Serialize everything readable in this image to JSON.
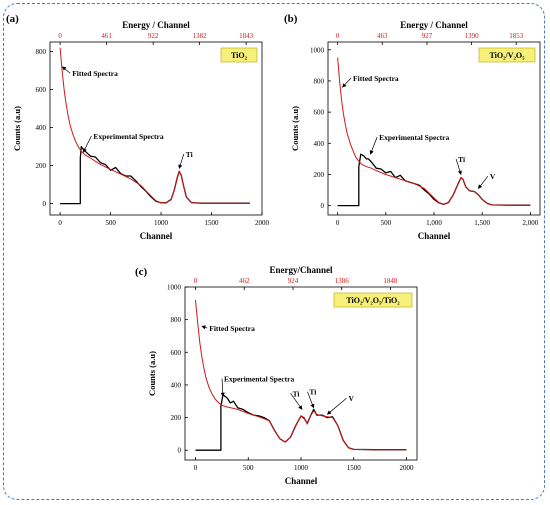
{
  "chart_data": [
    {
      "type": "line",
      "panel_label": "(a)",
      "sample_label": "TiO₂",
      "xlabel": "Channel",
      "ylabel": "Counts (a.u)",
      "top_xlabel": "Energy / Channel",
      "xlim": [
        -100,
        2000
      ],
      "ylim": [
        -60,
        850
      ],
      "x_ticks": [
        0,
        500,
        1000,
        1500,
        2000
      ],
      "x_tick_labels": [
        "0",
        "500",
        "1000",
        "1500",
        "2000"
      ],
      "y_ticks": [
        0,
        200,
        400,
        600,
        800
      ],
      "y_tick_labels": [
        "0",
        "200",
        "400",
        "600",
        "800"
      ],
      "top_ticks": [
        0,
        461,
        922,
        1382,
        1843
      ],
      "top_tick_labels": [
        "0",
        "461",
        "922",
        "1382",
        "1843"
      ],
      "annotations": [
        {
          "text": "Fitted Spectra",
          "x": 120,
          "y": 670,
          "arrow_to": [
            22,
            720
          ]
        },
        {
          "text": "Experimental Spectra",
          "x": 330,
          "y": 340,
          "arrow_to": [
            230,
            270
          ]
        },
        {
          "text": "Ti",
          "x": 1245,
          "y": 245,
          "arrow_to": [
            1180,
            185
          ]
        }
      ],
      "series": [
        {
          "name": "Fitted Spectra",
          "color": "#d01818",
          "x": [
            0,
            20,
            40,
            60,
            80,
            100,
            130,
            160,
            190,
            220,
            250,
            300,
            400,
            500,
            600,
            700,
            800,
            900,
            950,
            1000,
            1050,
            1100,
            1130,
            1160,
            1180,
            1200,
            1220,
            1250,
            1300,
            1400,
            1600,
            1800,
            1880
          ],
          "y": [
            820,
            700,
            600,
            520,
            460,
            410,
            360,
            320,
            290,
            270,
            255,
            240,
            205,
            180,
            155,
            130,
            95,
            40,
            15,
            3,
            4,
            20,
            70,
            140,
            170,
            150,
            100,
            35,
            5,
            2,
            2,
            2,
            2
          ]
        },
        {
          "name": "Experimental Spectra",
          "color": "#000000",
          "x": [
            0,
            200,
            200,
            210,
            230,
            260,
            300,
            350,
            400,
            450,
            500,
            550,
            600,
            650,
            700,
            750,
            800,
            850,
            900,
            950,
            1000,
            1050,
            1100,
            1130,
            1160,
            1180,
            1200,
            1220,
            1250,
            1300,
            1400,
            1600,
            1800,
            1880
          ],
          "y": [
            0,
            0,
            240,
            300,
            285,
            270,
            250,
            245,
            215,
            205,
            175,
            190,
            158,
            145,
            145,
            120,
            90,
            65,
            35,
            12,
            4,
            4,
            22,
            70,
            135,
            170,
            150,
            100,
            35,
            5,
            2,
            2,
            2,
            2
          ]
        }
      ]
    },
    {
      "type": "line",
      "panel_label": "(b)",
      "sample_label": "TiO₂/V₂O₅",
      "xlabel": "Channel",
      "ylabel": "Counts (a.u)",
      "top_xlabel": "Energy / Channel",
      "xlim": [
        -100,
        2100
      ],
      "ylim": [
        -60,
        1050
      ],
      "x_ticks": [
        0,
        500,
        1000,
        1500,
        2000
      ],
      "x_tick_labels": [
        "0",
        "500",
        "1,000",
        "1,500",
        "2,000"
      ],
      "y_ticks": [
        0,
        200,
        400,
        600,
        800,
        1000
      ],
      "y_tick_labels": [
        "0",
        "200",
        "400",
        "600",
        "800",
        "1000"
      ],
      "top_ticks": [
        0,
        463,
        927,
        1390,
        1853
      ],
      "top_tick_labels": [
        "0",
        "463",
        "927",
        "1390",
        "1853"
      ],
      "annotations": [
        {
          "text": "Fitted Spectra",
          "x": 160,
          "y": 800,
          "arrow_to": [
            50,
            760
          ]
        },
        {
          "text": "Experimental Spectra",
          "x": 430,
          "y": 420,
          "arrow_to": [
            340,
            330
          ]
        },
        {
          "text": "Ti",
          "x": 1250,
          "y": 280,
          "arrow_to": [
            1280,
            200
          ]
        },
        {
          "text": "V",
          "x": 1580,
          "y": 170,
          "arrow_to": [
            1460,
            110
          ]
        }
      ],
      "series": [
        {
          "name": "Fitted Spectra",
          "color": "#d01818",
          "x": [
            0,
            20,
            40,
            60,
            80,
            100,
            130,
            160,
            190,
            220,
            250,
            300,
            350,
            400,
            500,
            600,
            700,
            800,
            900,
            1000,
            1050,
            1100,
            1150,
            1200,
            1250,
            1280,
            1300,
            1330,
            1370,
            1420,
            1460,
            1500,
            1550,
            1600,
            1800,
            2000
          ],
          "y": [
            950,
            800,
            680,
            590,
            520,
            460,
            400,
            350,
            310,
            285,
            265,
            250,
            240,
            225,
            200,
            180,
            160,
            140,
            110,
            50,
            20,
            8,
            20,
            70,
            140,
            180,
            170,
            120,
            95,
            90,
            70,
            40,
            15,
            5,
            3,
            3
          ]
        },
        {
          "name": "Experimental Spectra",
          "color": "#000000",
          "x": [
            0,
            220,
            220,
            240,
            270,
            300,
            320,
            350,
            400,
            450,
            500,
            550,
            600,
            650,
            700,
            750,
            800,
            850,
            900,
            950,
            1000,
            1050,
            1100,
            1150,
            1200,
            1250,
            1280,
            1300,
            1330,
            1370,
            1420,
            1460,
            1500,
            1550,
            1600,
            1800,
            2000
          ],
          "y": [
            0,
            0,
            250,
            330,
            320,
            300,
            300,
            280,
            240,
            235,
            210,
            220,
            180,
            195,
            160,
            150,
            140,
            130,
            100,
            75,
            40,
            18,
            8,
            20,
            70,
            140,
            180,
            170,
            120,
            95,
            90,
            70,
            40,
            15,
            5,
            3,
            3
          ]
        }
      ]
    },
    {
      "type": "line",
      "panel_label": "(c)",
      "sample_label": "TiO₂/V₂O₅/TiO₂",
      "xlabel": "Channel",
      "ylabel": "Counts (a.u)",
      "top_xlabel": "Energy/Channel",
      "xlim": [
        -100,
        2100
      ],
      "ylim": [
        -60,
        1000
      ],
      "x_ticks": [
        0,
        500,
        1000,
        1500,
        2000
      ],
      "x_tick_labels": [
        "0",
        "500",
        "1000",
        "1500",
        "2000"
      ],
      "y_ticks": [
        0,
        200,
        400,
        600,
        800,
        1000
      ],
      "y_tick_labels": [
        "0",
        "200",
        "400",
        "600",
        "800",
        "1000"
      ],
      "top_ticks": [
        0,
        462,
        924,
        1386,
        1848
      ],
      "top_tick_labels": [
        "0",
        "462",
        "924",
        "1386",
        "1848"
      ],
      "annotations": [
        {
          "text": "Fitted Spectra",
          "x": 130,
          "y": 730,
          "arrow_to": [
            60,
            760
          ]
        },
        {
          "text": "Experimental Spectra",
          "x": 270,
          "y": 420,
          "arrow_to": [
            260,
            330
          ]
        },
        {
          "text": "Ti",
          "x": 920,
          "y": 330,
          "arrow_to": [
            1010,
            250
          ]
        },
        {
          "text": "Ti",
          "x": 1080,
          "y": 340,
          "arrow_to": [
            1120,
            260
          ]
        },
        {
          "text": "V",
          "x": 1450,
          "y": 300,
          "arrow_to": [
            1250,
            220
          ]
        }
      ],
      "series": [
        {
          "name": "Fitted Spectra",
          "color": "#d01818",
          "x": [
            0,
            20,
            40,
            60,
            80,
            100,
            130,
            160,
            190,
            220,
            250,
            300,
            400,
            500,
            600,
            700,
            750,
            800,
            850,
            900,
            950,
            1000,
            1030,
            1060,
            1090,
            1120,
            1150,
            1200,
            1250,
            1300,
            1350,
            1400,
            1450,
            1500,
            1700,
            2000
          ],
          "y": [
            920,
            780,
            660,
            570,
            500,
            440,
            380,
            340,
            310,
            290,
            275,
            265,
            250,
            225,
            205,
            180,
            120,
            70,
            50,
            80,
            150,
            210,
            200,
            160,
            210,
            240,
            220,
            210,
            205,
            200,
            150,
            60,
            15,
            5,
            3,
            3
          ]
        },
        {
          "name": "Experimental Spectra",
          "color": "#000000",
          "x": [
            0,
            240,
            240,
            260,
            300,
            330,
            360,
            400,
            450,
            500,
            550,
            600,
            650,
            700,
            750,
            800,
            850,
            900,
            950,
            1000,
            1030,
            1060,
            1090,
            1120,
            1150,
            1200,
            1250,
            1300,
            1350,
            1400,
            1450,
            1500,
            1700,
            2000
          ],
          "y": [
            0,
            0,
            270,
            340,
            320,
            290,
            300,
            260,
            250,
            230,
            215,
            210,
            200,
            180,
            120,
            70,
            50,
            80,
            150,
            210,
            195,
            165,
            210,
            250,
            215,
            215,
            200,
            205,
            150,
            60,
            15,
            5,
            3,
            3
          ]
        }
      ]
    }
  ]
}
